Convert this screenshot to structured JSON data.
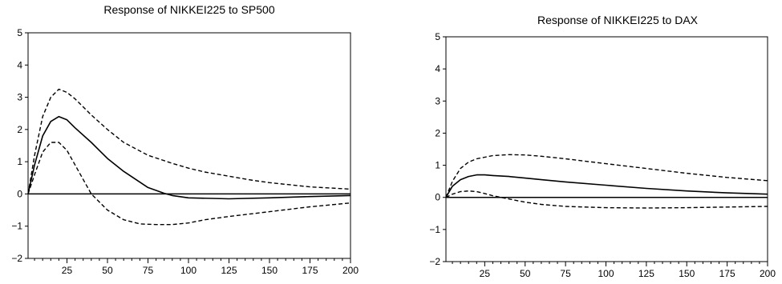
{
  "chart_data": [
    {
      "type": "line",
      "title": "Response of NIKKEI225 to SP500",
      "xlabel": "",
      "ylabel": "",
      "xlim": [
        1,
        200
      ],
      "ylim": [
        -2,
        5
      ],
      "xticks": [
        25,
        50,
        75,
        100,
        125,
        150,
        175,
        200
      ],
      "yticks": [
        5,
        4,
        3,
        2,
        1,
        0,
        -1,
        -2
      ],
      "ytick_labels": [
        "5",
        "4",
        "3",
        "2",
        "1",
        "0",
        "−1",
        "−2"
      ],
      "grid": false,
      "series": [
        {
          "style": "dashed",
          "x": [
            1,
            5,
            10,
            15,
            20,
            25,
            30,
            40,
            50,
            60,
            75,
            90,
            100,
            110,
            125,
            140,
            150,
            175,
            200
          ],
          "y": [
            0,
            1.2,
            2.4,
            3.0,
            3.25,
            3.15,
            2.95,
            2.45,
            2.0,
            1.6,
            1.2,
            0.95,
            0.8,
            0.68,
            0.55,
            0.42,
            0.35,
            0.22,
            0.15
          ]
        },
        {
          "style": "solid",
          "x": [
            1,
            5,
            10,
            15,
            20,
            25,
            30,
            40,
            50,
            60,
            75,
            85,
            90,
            100,
            125,
            150,
            175,
            200
          ],
          "y": [
            0,
            0.9,
            1.8,
            2.25,
            2.4,
            2.3,
            2.05,
            1.6,
            1.1,
            0.7,
            0.2,
            0.02,
            -0.05,
            -0.12,
            -0.15,
            -0.12,
            -0.08,
            -0.05
          ]
        },
        {
          "style": "dashed",
          "x": [
            1,
            5,
            10,
            15,
            20,
            25,
            30,
            35,
            40,
            50,
            60,
            70,
            80,
            90,
            100,
            110,
            125,
            150,
            175,
            200
          ],
          "y": [
            0,
            0.6,
            1.3,
            1.6,
            1.6,
            1.35,
            0.9,
            0.45,
            0.0,
            -0.5,
            -0.8,
            -0.93,
            -0.95,
            -0.95,
            -0.9,
            -0.8,
            -0.7,
            -0.55,
            -0.4,
            -0.28
          ]
        }
      ]
    },
    {
      "type": "line",
      "title": "Response of NIKKEI225 to DAX",
      "xlabel": "",
      "ylabel": "",
      "xlim": [
        1,
        200
      ],
      "ylim": [
        -2,
        5
      ],
      "xticks": [
        25,
        50,
        75,
        100,
        125,
        150,
        175,
        200
      ],
      "yticks": [
        5,
        4,
        3,
        2,
        1,
        0,
        -1,
        -2
      ],
      "ytick_labels": [
        "5",
        "4",
        "3",
        "2",
        "1",
        "0",
        "−1",
        "−2"
      ],
      "grid": false,
      "series": [
        {
          "style": "dashed",
          "x": [
            1,
            5,
            10,
            15,
            20,
            25,
            30,
            40,
            50,
            60,
            75,
            100,
            125,
            150,
            175,
            200
          ],
          "y": [
            0,
            0.5,
            0.9,
            1.1,
            1.2,
            1.25,
            1.3,
            1.33,
            1.32,
            1.28,
            1.2,
            1.05,
            0.9,
            0.75,
            0.62,
            0.52
          ]
        },
        {
          "style": "solid",
          "x": [
            1,
            5,
            10,
            15,
            20,
            25,
            30,
            40,
            50,
            60,
            75,
            100,
            125,
            150,
            175,
            200
          ],
          "y": [
            0,
            0.35,
            0.55,
            0.65,
            0.7,
            0.7,
            0.68,
            0.65,
            0.6,
            0.55,
            0.48,
            0.38,
            0.28,
            0.2,
            0.14,
            0.1
          ]
        },
        {
          "style": "dashed",
          "x": [
            1,
            5,
            10,
            15,
            20,
            25,
            30,
            35,
            40,
            50,
            60,
            75,
            100,
            125,
            150,
            175,
            200
          ],
          "y": [
            0,
            0.1,
            0.18,
            0.2,
            0.18,
            0.12,
            0.05,
            0.0,
            -0.05,
            -0.15,
            -0.22,
            -0.28,
            -0.32,
            -0.33,
            -0.32,
            -0.3,
            -0.28
          ]
        }
      ]
    }
  ]
}
